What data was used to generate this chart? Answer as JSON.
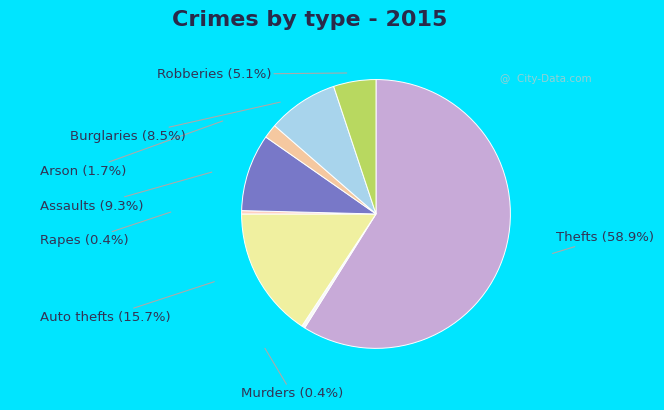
{
  "title": "Crimes by type - 2015",
  "wedge_labels": [
    "Thefts",
    "Murders",
    "Auto thefts",
    "Rapes",
    "Assaults",
    "Arson",
    "Burglaries",
    "Robberies"
  ],
  "wedge_sizes": [
    58.9,
    0.4,
    15.7,
    0.4,
    9.3,
    1.7,
    8.5,
    5.1
  ],
  "wedge_colors": [
    "#c8aad8",
    "#f8f8f8",
    "#f0f0a0",
    "#ffd0c0",
    "#7878c8",
    "#f5c8a0",
    "#a8d4ec",
    "#b8d860"
  ],
  "background_outer": "#00e5ff",
  "background_inner": "#d4ece0",
  "title_color": "#2a2a4a",
  "title_fontsize": 16,
  "label_fontsize": 9.5,
  "label_color": "#333355",
  "connector_color": "#aaaaaa",
  "watermark": "@  City-Data.com",
  "startangle": 90
}
